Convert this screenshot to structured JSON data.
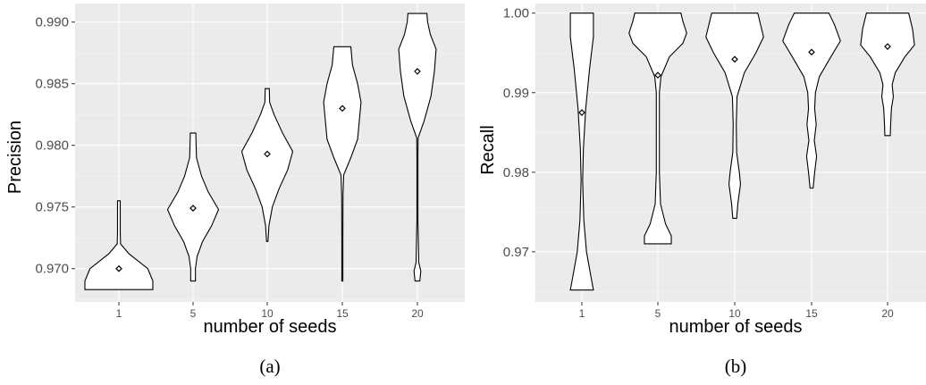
{
  "chart_data": [
    {
      "type": "violin",
      "caption": "(a)",
      "xlabel": "number of seeds",
      "ylabel": "Precision",
      "categories": [
        "1",
        "5",
        "10",
        "15",
        "20"
      ],
      "ylim": [
        0.9673,
        0.9915
      ],
      "yticks": [
        0.97,
        0.975,
        0.98,
        0.985,
        0.99
      ],
      "ytick_labels": [
        "0.970",
        "0.975",
        "0.980",
        "0.985",
        "0.990"
      ],
      "grid": true,
      "violins": [
        {
          "category": "1",
          "min": 0.9683,
          "max": 0.9755,
          "mean": 0.97,
          "profile": [
            [
              0.9683,
              1.0
            ],
            [
              0.969,
              1.0
            ],
            [
              0.97,
              0.85
            ],
            [
              0.9712,
              0.3
            ],
            [
              0.972,
              0.05
            ],
            [
              0.973,
              0.04
            ],
            [
              0.9745,
              0.04
            ],
            [
              0.9755,
              0.04
            ]
          ]
        },
        {
          "category": "5",
          "min": 0.969,
          "max": 0.981,
          "mean": 0.9749,
          "profile": [
            [
              0.969,
              0.07
            ],
            [
              0.97,
              0.07
            ],
            [
              0.971,
              0.12
            ],
            [
              0.9722,
              0.28
            ],
            [
              0.9735,
              0.55
            ],
            [
              0.9748,
              0.75
            ],
            [
              0.9762,
              0.45
            ],
            [
              0.9775,
              0.25
            ],
            [
              0.979,
              0.1
            ],
            [
              0.981,
              0.08
            ]
          ]
        },
        {
          "category": "10",
          "min": 0.9722,
          "max": 0.9846,
          "mean": 0.9793,
          "profile": [
            [
              0.9722,
              0.02
            ],
            [
              0.9735,
              0.05
            ],
            [
              0.975,
              0.15
            ],
            [
              0.9765,
              0.35
            ],
            [
              0.978,
              0.6
            ],
            [
              0.9795,
              0.75
            ],
            [
              0.981,
              0.45
            ],
            [
              0.9825,
              0.2
            ],
            [
              0.9835,
              0.07
            ],
            [
              0.9846,
              0.06
            ]
          ]
        },
        {
          "category": "15",
          "min": 0.969,
          "max": 0.988,
          "mean": 0.983,
          "profile": [
            [
              0.969,
              0.015
            ],
            [
              0.972,
              0.015
            ],
            [
              0.976,
              0.02
            ],
            [
              0.9776,
              0.04
            ],
            [
              0.979,
              0.25
            ],
            [
              0.9805,
              0.45
            ],
            [
              0.982,
              0.5
            ],
            [
              0.9835,
              0.55
            ],
            [
              0.985,
              0.45
            ],
            [
              0.9865,
              0.3
            ],
            [
              0.988,
              0.25
            ]
          ]
        },
        {
          "category": "20",
          "min": 0.969,
          "max": 0.9907,
          "mean": 0.986,
          "profile": [
            [
              0.969,
              0.07
            ],
            [
              0.9698,
              0.1
            ],
            [
              0.9705,
              0.04
            ],
            [
              0.974,
              0.015
            ],
            [
              0.979,
              0.015
            ],
            [
              0.9806,
              0.02
            ],
            [
              0.982,
              0.2
            ],
            [
              0.984,
              0.4
            ],
            [
              0.986,
              0.5
            ],
            [
              0.9878,
              0.55
            ],
            [
              0.989,
              0.38
            ],
            [
              0.99,
              0.3
            ],
            [
              0.9907,
              0.28
            ]
          ]
        }
      ]
    },
    {
      "type": "violin",
      "caption": "(b)",
      "xlabel": "number of seeds",
      "ylabel": "Recall",
      "categories": [
        "1",
        "5",
        "10",
        "15",
        "20"
      ],
      "ylim": [
        0.9637,
        1.0012
      ],
      "yticks": [
        0.97,
        0.98,
        0.99,
        1.0
      ],
      "ytick_labels": [
        "0.97",
        "0.98",
        "0.99",
        "1.00"
      ],
      "grid": true,
      "violins": [
        {
          "category": "1",
          "min": 0.9652,
          "max": 1.0,
          "mean": 0.9875,
          "profile": [
            [
              0.9652,
              0.3
            ],
            [
              0.9665,
              0.25
            ],
            [
              0.97,
              0.12
            ],
            [
              0.974,
              0.05
            ],
            [
              0.979,
              0.02
            ],
            [
              0.983,
              0.04
            ],
            [
              0.988,
              0.1
            ],
            [
              0.993,
              0.2
            ],
            [
              0.997,
              0.3
            ],
            [
              1.0,
              0.3
            ]
          ]
        },
        {
          "category": "5",
          "min": 0.971,
          "max": 1.0,
          "mean": 0.9922,
          "profile": [
            [
              0.971,
              0.35
            ],
            [
              0.972,
              0.35
            ],
            [
              0.9735,
              0.2
            ],
            [
              0.976,
              0.07
            ],
            [
              0.98,
              0.04
            ],
            [
              0.985,
              0.04
            ],
            [
              0.99,
              0.04
            ],
            [
              0.992,
              0.08
            ],
            [
              0.9945,
              0.3
            ],
            [
              0.9962,
              0.65
            ],
            [
              0.9975,
              0.75
            ],
            [
              0.999,
              0.65
            ],
            [
              1.0,
              0.6
            ]
          ]
        },
        {
          "category": "10",
          "min": 0.9742,
          "max": 1.0,
          "mean": 0.9942,
          "profile": [
            [
              0.9742,
              0.05
            ],
            [
              0.976,
              0.08
            ],
            [
              0.9785,
              0.15
            ],
            [
              0.98,
              0.12
            ],
            [
              0.9825,
              0.05
            ],
            [
              0.986,
              0.04
            ],
            [
              0.9895,
              0.06
            ],
            [
              0.9925,
              0.25
            ],
            [
              0.995,
              0.55
            ],
            [
              0.997,
              0.75
            ],
            [
              0.999,
              0.65
            ],
            [
              1.0,
              0.6
            ]
          ]
        },
        {
          "category": "15",
          "min": 0.978,
          "max": 1.0,
          "mean": 0.9951,
          "profile": [
            [
              0.978,
              0.04
            ],
            [
              0.98,
              0.08
            ],
            [
              0.982,
              0.13
            ],
            [
              0.984,
              0.07
            ],
            [
              0.986,
              0.12
            ],
            [
              0.988,
              0.08
            ],
            [
              0.99,
              0.1
            ],
            [
              0.992,
              0.2
            ],
            [
              0.9945,
              0.5
            ],
            [
              0.9965,
              0.75
            ],
            [
              0.9985,
              0.6
            ],
            [
              1.0,
              0.45
            ]
          ]
        },
        {
          "category": "20",
          "min": 0.9846,
          "max": 1.0,
          "mean": 0.9958,
          "profile": [
            [
              0.9846,
              0.07
            ],
            [
              0.986,
              0.08
            ],
            [
              0.988,
              0.1
            ],
            [
              0.9895,
              0.15
            ],
            [
              0.991,
              0.12
            ],
            [
              0.9925,
              0.2
            ],
            [
              0.9945,
              0.45
            ],
            [
              0.996,
              0.7
            ],
            [
              0.998,
              0.65
            ],
            [
              1.0,
              0.55
            ]
          ]
        }
      ]
    }
  ]
}
